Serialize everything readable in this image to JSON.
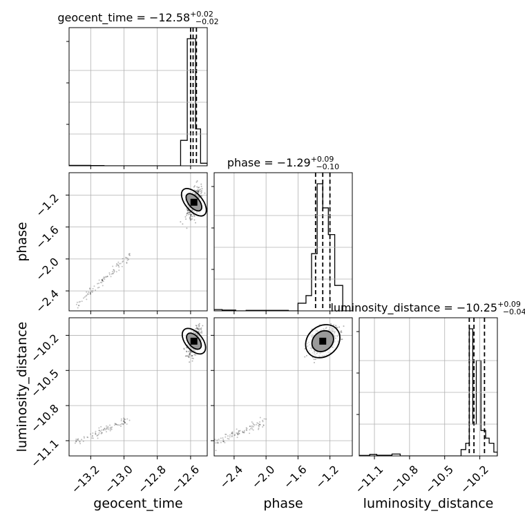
{
  "chart_data": {
    "type": "corner",
    "parameters": [
      {
        "name": "geocent_time",
        "range": [
          -13.33,
          -12.5
        ],
        "ticks": [
          -13.2,
          -13.0,
          -12.8,
          -12.6
        ],
        "tick_labels": [
          "−13.2",
          "−13.0",
          "−12.8",
          "−12.6"
        ],
        "title": {
          "prefix": "geocent_time = ",
          "median": "−12.58",
          "plus": "+0.02",
          "minus": "−0.02"
        },
        "quantiles": [
          -12.6,
          -12.585,
          -12.565
        ],
        "hist_edges": [
          -13.33,
          -13.2,
          -13.12,
          -12.66,
          -12.62,
          -12.6,
          -12.57,
          -12.54,
          -12.5
        ],
        "hist_counts": [
          0.003,
          0.002,
          0.0,
          0.2,
          1.0,
          1.0,
          0.29,
          0.02
        ]
      },
      {
        "name": "phase",
        "range": [
          -2.65,
          -0.92
        ],
        "ticks": [
          -2.4,
          -2.0,
          -1.6,
          -1.2
        ],
        "tick_labels": [
          "−2.4",
          "−2.0",
          "−1.6",
          "−1.2"
        ],
        "title": {
          "prefix": "phase = ",
          "median": "−1.29",
          "plus": "+0.09",
          "minus": "−0.10"
        },
        "quantiles": [
          -1.38,
          -1.29,
          -1.2
        ],
        "hist_edges": [
          -2.65,
          -2.55,
          -2.38,
          -2.25,
          -1.72,
          -1.6,
          -1.5,
          -1.43,
          -1.36,
          -1.29,
          -1.22,
          -1.14,
          -1.04,
          -0.92
        ],
        "hist_counts": [
          0.01,
          0.006,
          0.0,
          0.004,
          0.0,
          0.06,
          0.12,
          0.45,
          1.0,
          0.81,
          0.6,
          0.2,
          0.0
        ]
      },
      {
        "name": "luminosity_distance",
        "range": [
          -11.23,
          -10.05
        ],
        "ticks": [
          -11.1,
          -10.8,
          -10.5,
          -10.2
        ],
        "tick_labels": [
          "−11.1",
          "−10.8",
          "−10.5",
          "−10.2"
        ],
        "title": {
          "prefix": "luminosity_distance = ",
          "median": "−10.25",
          "plus": "+0.09",
          "minus": "−0.04"
        },
        "quantiles": [
          -10.29,
          -10.25,
          -10.16
        ],
        "hist_edges": [
          -11.23,
          -11.14,
          -11.08,
          -10.95,
          -10.88,
          -10.36,
          -10.32,
          -10.29,
          -10.26,
          -10.23,
          -10.19,
          -10.15,
          -10.12,
          -10.08,
          -10.05
        ],
        "hist_counts": [
          0.004,
          0.012,
          0.005,
          0.015,
          0.0,
          0.05,
          0.1,
          1.0,
          0.25,
          0.75,
          0.2,
          0.14,
          0.1,
          0.03
        ]
      }
    ],
    "points_2d": {
      "geocent_time|phase": {
        "center": [
          -12.58,
          -1.29
        ],
        "spread": [
          0.02,
          0.08
        ],
        "tail_from": [
          -13.3,
          -2.6
        ],
        "tail_to": [
          -12.96,
          -1.95
        ]
      },
      "geocent_time|luminosity_distance": {
        "center": [
          -12.58,
          -10.25
        ],
        "spread": [
          0.02,
          0.05
        ],
        "tail_from": [
          -13.3,
          -11.12
        ],
        "tail_to": [
          -12.98,
          -10.92
        ]
      },
      "phase|luminosity_distance": {
        "center": [
          -1.29,
          -10.25
        ],
        "spread": [
          0.09,
          0.05
        ],
        "tail_from": [
          -2.62,
          -11.12
        ],
        "tail_to": [
          -2.0,
          -10.93
        ]
      }
    },
    "grid": true
  }
}
